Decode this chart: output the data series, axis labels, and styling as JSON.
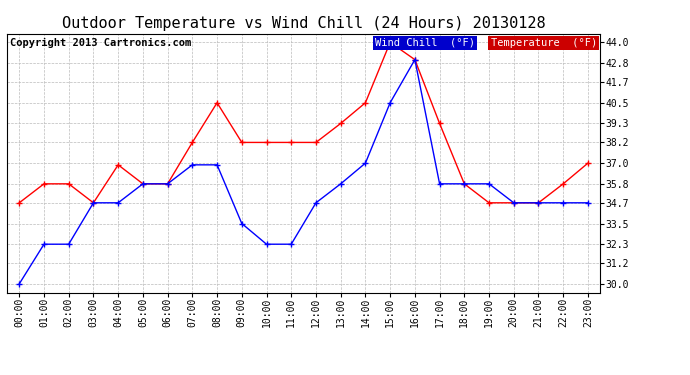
{
  "title": "Outdoor Temperature vs Wind Chill (24 Hours) 20130128",
  "copyright": "Copyright 2013 Cartronics.com",
  "hours": [
    "00:00",
    "01:00",
    "02:00",
    "03:00",
    "04:00",
    "05:00",
    "06:00",
    "07:00",
    "08:00",
    "09:00",
    "10:00",
    "11:00",
    "12:00",
    "13:00",
    "14:00",
    "15:00",
    "16:00",
    "17:00",
    "18:00",
    "19:00",
    "20:00",
    "21:00",
    "22:00",
    "23:00"
  ],
  "temperature": [
    34.7,
    35.8,
    35.8,
    34.7,
    36.9,
    35.8,
    35.8,
    38.2,
    40.5,
    38.2,
    38.2,
    38.2,
    38.2,
    39.3,
    40.5,
    44.0,
    43.0,
    39.3,
    35.8,
    34.7,
    34.7,
    34.7,
    35.8,
    37.0
  ],
  "wind_chill": [
    30.0,
    32.3,
    32.3,
    34.7,
    34.7,
    35.8,
    35.8,
    36.9,
    36.9,
    33.5,
    32.3,
    32.3,
    34.7,
    35.8,
    37.0,
    40.5,
    43.0,
    35.8,
    35.8,
    35.8,
    34.7,
    34.7,
    34.7,
    34.7
  ],
  "ylim": [
    29.5,
    44.5
  ],
  "yticks": [
    30.0,
    31.2,
    32.3,
    33.5,
    34.7,
    35.8,
    37.0,
    38.2,
    39.3,
    40.5,
    41.7,
    42.8,
    44.0
  ],
  "temp_color": "red",
  "wind_color": "blue",
  "bg_color": "white",
  "plot_bg": "white",
  "grid_color": "#bbbbbb",
  "title_fontsize": 11,
  "copyright_fontsize": 7.5
}
